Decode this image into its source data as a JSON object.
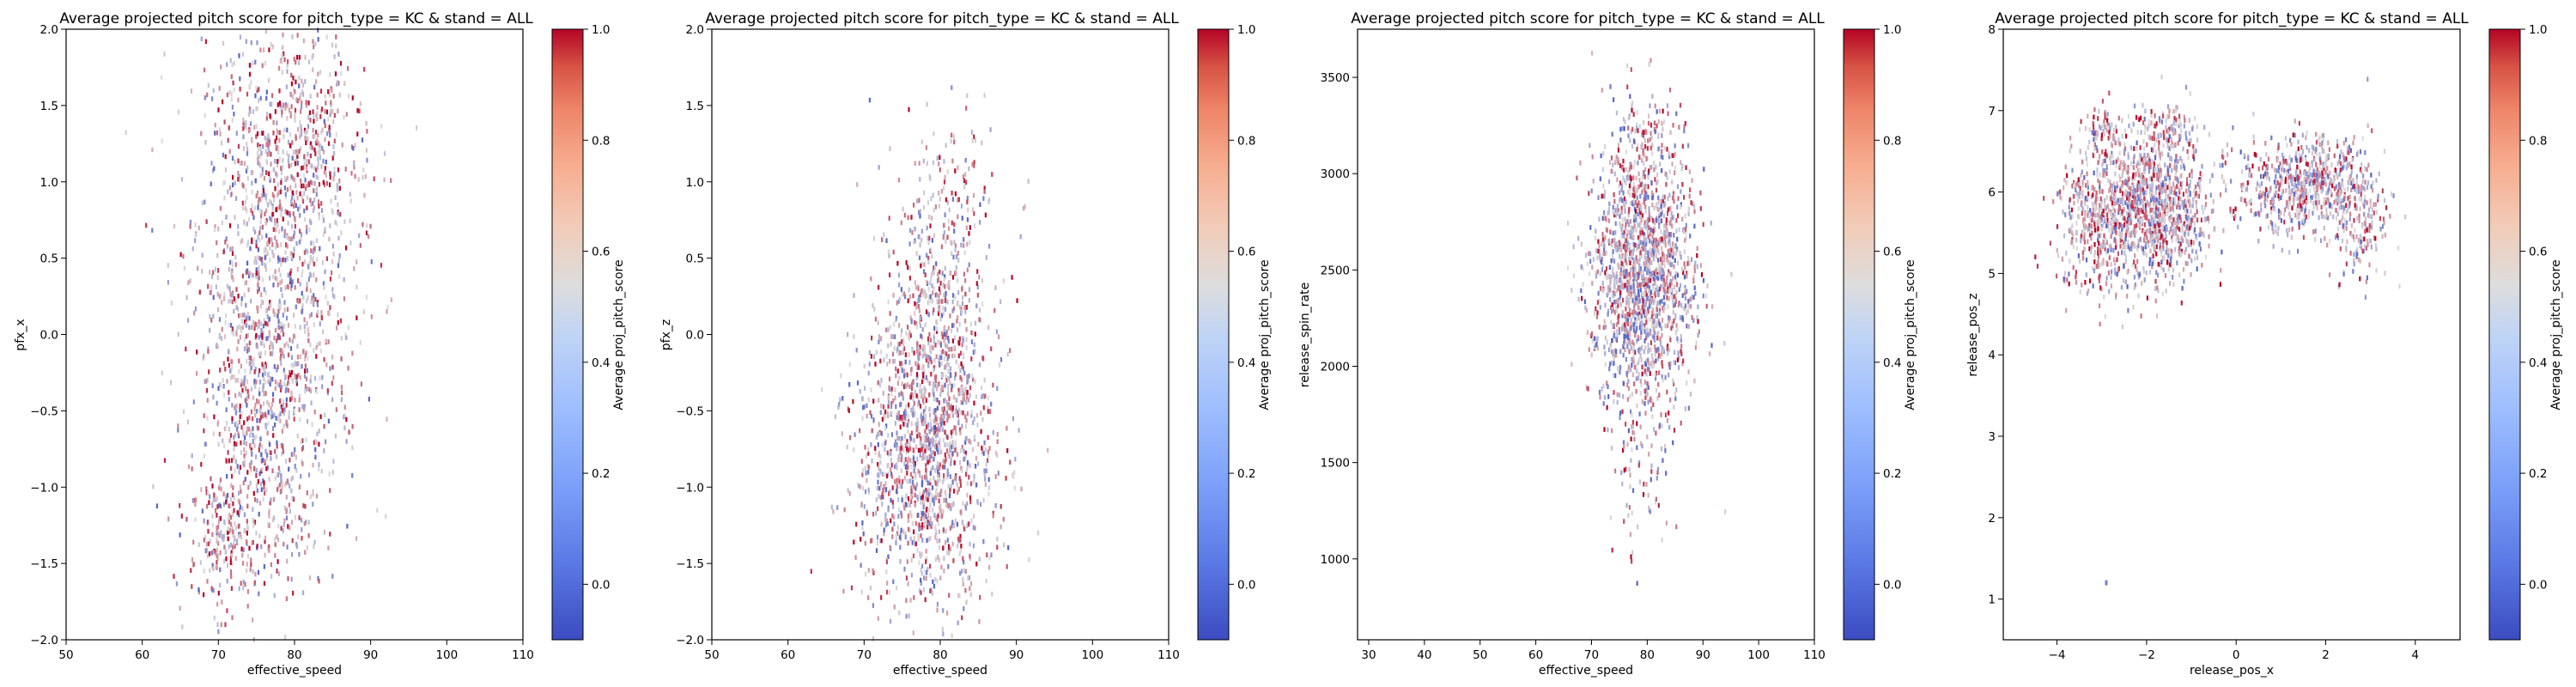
{
  "figure": {
    "background": "#ffffff"
  },
  "colormap": {
    "name": "coolwarm",
    "low": "#3b4cc0",
    "mid": "#dddddd",
    "high": "#b40426"
  },
  "chart_data": [
    {
      "type": "heatmap",
      "title": "Average projected pitch score for pitch_type = KC & stand = ALL",
      "xlabel": "effective_speed",
      "ylabel": "pfx_x",
      "xlim": [
        50,
        110
      ],
      "ylim": [
        -2.0,
        2.0
      ],
      "xticks": [
        50,
        60,
        70,
        80,
        90,
        100,
        110
      ],
      "yticks": [
        -2.0,
        -1.5,
        -1.0,
        -0.5,
        0.0,
        0.5,
        1.0,
        1.5,
        2.0
      ],
      "ytick_labels": [
        "−2.0",
        "−1.5",
        "−1.0",
        "−0.5",
        "0.0",
        "0.5",
        "1.0",
        "1.5",
        "2.0"
      ],
      "colorbar": {
        "label": "Average proj_pitch_score",
        "range": [
          -0.1,
          1.0
        ],
        "ticks": [
          0.0,
          0.2,
          0.4,
          0.6,
          0.8,
          1.0
        ],
        "tick_labels": [
          "0.0",
          "0.2",
          "0.4",
          "0.6",
          "0.8",
          "1.0"
        ]
      },
      "clusters": [
        {
          "cx": 77,
          "cy": 0.4,
          "sx": 5.5,
          "sy": 0.8,
          "n": 1000,
          "mean": 0.45
        },
        {
          "cx": 80,
          "cy": 1.2,
          "sx": 4.5,
          "sy": 0.45,
          "n": 450,
          "mean": 0.6
        },
        {
          "cx": 76,
          "cy": -0.6,
          "sx": 4.5,
          "sy": 0.55,
          "n": 550,
          "mean": 0.5
        },
        {
          "cx": 71,
          "cy": -1.3,
          "sx": 2.5,
          "sy": 0.25,
          "n": 200,
          "mean": 0.6
        }
      ],
      "grid": false
    },
    {
      "type": "heatmap",
      "title": "Average projected pitch score for pitch_type = KC & stand = ALL",
      "xlabel": "effective_speed",
      "ylabel": "pfx_z",
      "xlim": [
        50,
        110
      ],
      "ylim": [
        -2.0,
        2.0
      ],
      "xticks": [
        50,
        60,
        70,
        80,
        90,
        100,
        110
      ],
      "yticks": [
        -2.0,
        -1.5,
        -1.0,
        -0.5,
        0.0,
        0.5,
        1.0,
        1.5,
        2.0
      ],
      "ytick_labels": [
        "−2.0",
        "−1.5",
        "−1.0",
        "−0.5",
        "0.0",
        "0.5",
        "1.0",
        "1.5",
        "2.0"
      ],
      "colorbar": {
        "label": "Average proj_pitch_score",
        "range": [
          -0.1,
          1.0
        ],
        "ticks": [
          0.0,
          0.2,
          0.4,
          0.6,
          0.8,
          1.0
        ],
        "tick_labels": [
          "0.0",
          "0.2",
          "0.4",
          "0.6",
          "0.8",
          "1.0"
        ]
      },
      "clusters": [
        {
          "cx": 78,
          "cy": -0.8,
          "sx": 4.5,
          "sy": 0.5,
          "n": 1300,
          "mean": 0.48
        },
        {
          "cx": 79,
          "cy": 0.1,
          "sx": 3.5,
          "sy": 0.45,
          "n": 450,
          "mean": 0.5
        },
        {
          "cx": 82,
          "cy": 0.9,
          "sx": 3.5,
          "sy": 0.3,
          "n": 100,
          "mean": 0.55
        }
      ],
      "grid": false
    },
    {
      "type": "heatmap",
      "title": "Average projected pitch score for pitch_type = KC & stand = ALL",
      "xlabel": "effective_speed",
      "ylabel": "release_spin_rate",
      "xlim": [
        28,
        110
      ],
      "ylim": [
        580,
        3750
      ],
      "xticks": [
        30,
        40,
        50,
        60,
        70,
        80,
        90,
        100,
        110
      ],
      "yticks": [
        1000,
        1500,
        2000,
        2500,
        3000,
        3500
      ],
      "ytick_labels": [
        "1000",
        "1500",
        "2000",
        "2500",
        "3000",
        "3500"
      ],
      "colorbar": {
        "label": "Average proj_pitch_score",
        "range": [
          -0.1,
          1.0
        ],
        "ticks": [
          0.0,
          0.2,
          0.4,
          0.6,
          0.8,
          1.0
        ],
        "tick_labels": [
          "0.0",
          "0.2",
          "0.4",
          "0.6",
          "0.8",
          "1.0"
        ]
      },
      "clusters": [
        {
          "cx": 79,
          "cy": 2450,
          "sx": 4.5,
          "sy": 330,
          "n": 1600,
          "mean": 0.45
        },
        {
          "cx": 79,
          "cy": 1500,
          "sx": 3.5,
          "sy": 280,
          "n": 80,
          "mean": 0.5
        },
        {
          "cx": 80,
          "cy": 3150,
          "sx": 3.5,
          "sy": 160,
          "n": 120,
          "mean": 0.55
        }
      ],
      "grid": false
    },
    {
      "type": "heatmap",
      "title": "Average projected pitch score for pitch_type = KC & stand = ALL",
      "xlabel": "release_pos_x",
      "ylabel": "release_pos_z",
      "xlim": [
        -5.2,
        5.0
      ],
      "ylim": [
        0.5,
        8.0
      ],
      "xticks": [
        -4,
        -2,
        0,
        2,
        4
      ],
      "xtick_labels": [
        "−4",
        "−2",
        "0",
        "2",
        "4"
      ],
      "yticks": [
        1,
        2,
        3,
        4,
        5,
        6,
        7,
        8
      ],
      "ytick_labels": [
        "1",
        "2",
        "3",
        "4",
        "5",
        "6",
        "7",
        "8"
      ],
      "colorbar": {
        "label": "Average proj_pitch_score",
        "range": [
          -0.1,
          1.0
        ],
        "ticks": [
          0.0,
          0.2,
          0.4,
          0.6,
          0.8,
          1.0
        ],
        "tick_labels": [
          "0.0",
          "0.2",
          "0.4",
          "0.6",
          "0.8",
          "1.0"
        ]
      },
      "clusters": [
        {
          "cx": -1.9,
          "cy": 5.8,
          "sx": 0.65,
          "sy": 0.45,
          "n": 1200,
          "mean": 0.47
        },
        {
          "cx": -3.2,
          "cy": 5.6,
          "sx": 0.45,
          "sy": 0.45,
          "n": 300,
          "mean": 0.55
        },
        {
          "cx": -3.0,
          "cy": 6.8,
          "sx": 0.2,
          "sy": 0.15,
          "n": 60,
          "mean": 0.55
        },
        {
          "cx": 1.5,
          "cy": 6.1,
          "sx": 0.75,
          "sy": 0.3,
          "n": 700,
          "mean": 0.45
        },
        {
          "cx": 2.8,
          "cy": 5.6,
          "sx": 0.3,
          "sy": 0.35,
          "n": 150,
          "mean": 0.5
        },
        {
          "cx": -1.5,
          "cy": 6.8,
          "sx": 0.3,
          "sy": 0.15,
          "n": 80,
          "mean": 0.5
        }
      ],
      "outliers": [
        {
          "x": -2.9,
          "y": 1.2,
          "v": 0.1
        }
      ],
      "grid": false
    }
  ]
}
